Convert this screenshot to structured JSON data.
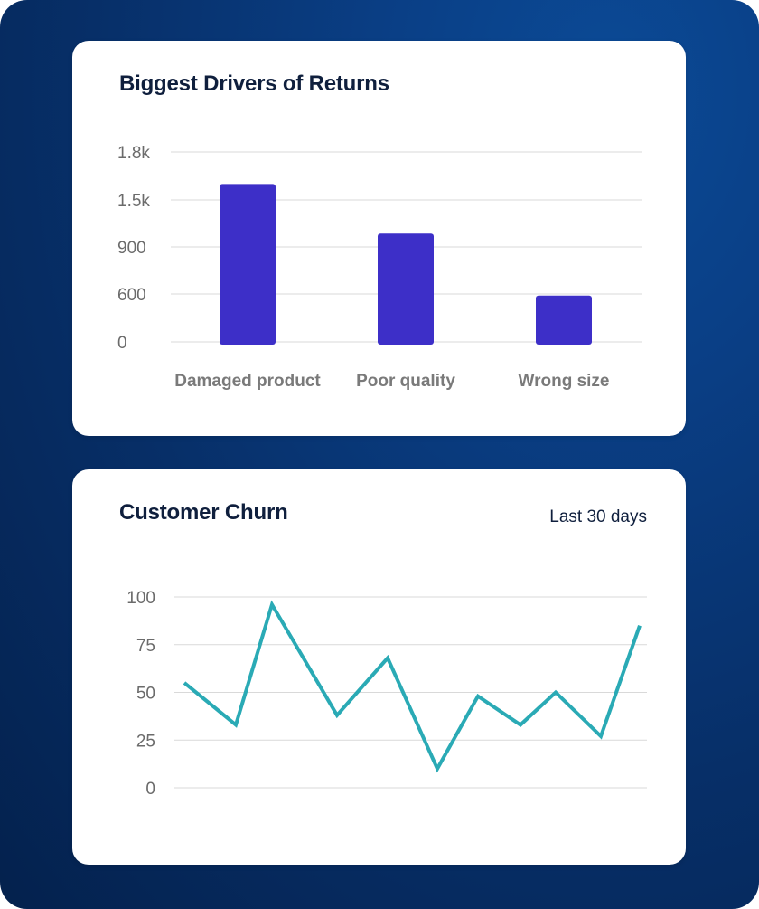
{
  "colors": {
    "bar": "#3d2fc8",
    "line": "#2aaab5",
    "grid": "#d9d9d9"
  },
  "chart_data": [
    {
      "type": "bar",
      "title": "Biggest Drivers of Returns",
      "categories": [
        "Damaged product",
        "Poor quality",
        "Wrong size"
      ],
      "values": [
        1600,
        1070,
        580
      ],
      "y_ticks": [
        {
          "value": 0,
          "label": "0"
        },
        {
          "value": 600,
          "label": "600"
        },
        {
          "value": 900,
          "label": "900"
        },
        {
          "value": 1500,
          "label": "1.5k"
        },
        {
          "value": 1800,
          "label": "1.8k"
        }
      ],
      "grid": true
    },
    {
      "type": "line",
      "title": "Customer Churn",
      "subtitle": "Last 30 days",
      "values": [
        55,
        33,
        96,
        38,
        68,
        10,
        48,
        33,
        50,
        27,
        85
      ],
      "ylim": [
        0,
        100
      ],
      "y_ticks": [
        {
          "value": 0,
          "label": "0"
        },
        {
          "value": 25,
          "label": "25"
        },
        {
          "value": 50,
          "label": "50"
        },
        {
          "value": 75,
          "label": "75"
        },
        {
          "value": 100,
          "label": "100"
        }
      ],
      "grid": true
    }
  ]
}
